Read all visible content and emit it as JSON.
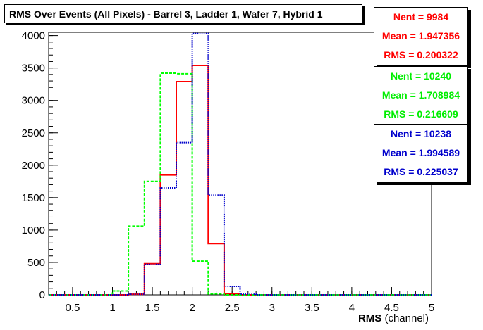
{
  "title": "RMS Over Events (All Pixels) - Barrel 3, Ladder 1, Wafer 7, Hybrid 1",
  "xlabel_bold": "RMS",
  "xlabel_rest": " (channel)",
  "stats": [
    {
      "nent": "Nent = 9984",
      "mean": "Mean = 1.947356",
      "rms": "RMS = 0.200322",
      "color": "#ff0000"
    },
    {
      "nent": "Nent = 10240",
      "mean": "Mean = 1.708984",
      "rms": "RMS = 0.216609",
      "color": "#00ff00"
    },
    {
      "nent": "Nent = 10238",
      "mean": "Mean = 1.994589",
      "rms": "RMS = 0.225037",
      "color": "#0000cc"
    }
  ],
  "chart_data": {
    "type": "histogram",
    "xlim": [
      0.2,
      5.0
    ],
    "ylim": [
      0,
      4050
    ],
    "bin_width": 0.2,
    "xticks": [
      0.5,
      1,
      1.5,
      2,
      2.5,
      3,
      3.5,
      4,
      4.5,
      5
    ],
    "xtick_labels": [
      "0.5",
      "1",
      "1.5",
      "2",
      "2.5",
      "3",
      "3.5",
      "4",
      "4.5",
      "5"
    ],
    "yticks": [
      0,
      500,
      1000,
      1500,
      2000,
      2500,
      3000,
      3500,
      4000
    ],
    "ytick_labels": [
      "0",
      "500",
      "1000",
      "1500",
      "2000",
      "2500",
      "3000",
      "3500",
      "4000"
    ],
    "series": [
      {
        "color": "#ff0000",
        "style": "solid",
        "bin_edges": [
          0.2,
          1.2,
          1.4,
          1.6,
          1.8,
          2.0,
          2.2,
          2.4,
          2.6,
          5.0
        ],
        "values": [
          0,
          10,
          480,
          1850,
          3290,
          3540,
          790,
          15,
          0
        ]
      },
      {
        "color": "#00ff00",
        "style": "dashed",
        "bin_edges": [
          0.2,
          1.0,
          1.2,
          1.4,
          1.6,
          1.8,
          2.0,
          2.2,
          2.4,
          5.0
        ],
        "values": [
          0,
          60,
          1060,
          1750,
          3420,
          3410,
          520,
          15,
          0
        ]
      },
      {
        "color": "#0000cc",
        "style": "dotted",
        "bin_edges": [
          0.2,
          1.2,
          1.4,
          1.6,
          1.8,
          2.0,
          2.2,
          2.4,
          2.6,
          2.8,
          5.0
        ],
        "values": [
          0,
          10,
          470,
          1650,
          2350,
          4030,
          1540,
          130,
          10,
          0
        ]
      }
    ]
  }
}
